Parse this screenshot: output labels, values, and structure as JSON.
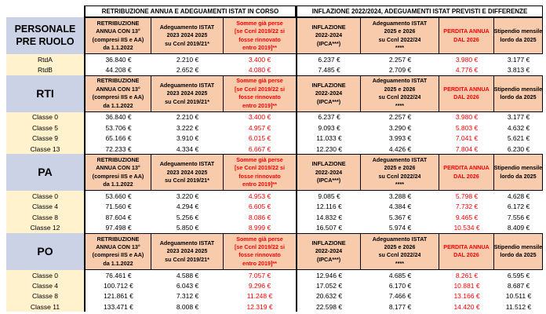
{
  "band": {
    "left_title": "RETRIBUZIONE ANNUA E ADEGUAMENTI ISTAT IN CORSO",
    "right_title": "INFLAZIONE 2022/2024, ADEGUAMENTI ISTAT PREVISTI E DIFFERENZE"
  },
  "column_headers": [
    {
      "lines": [
        "RETRIBUZIONE",
        "ANNUA CON 13°",
        "(compresi IIS e AA)",
        "da 1.1.2022"
      ],
      "color": "black"
    },
    {
      "lines": [
        "Adeguamento ISTAT",
        "2023 2024 2025",
        "su Ccnl 2019/21*"
      ],
      "color": "black"
    },
    {
      "lines": [
        "Somme già perse",
        "[se Ccnl 2019/22 si",
        "fosse rinnovato",
        "entro 2019]**"
      ],
      "color": "red"
    },
    {
      "lines": [
        "INFLAZIONE",
        "2022-2024",
        "(IPCA***)"
      ],
      "color": "black"
    },
    {
      "lines": [
        "Adeguamento ISTAT",
        "2025 e 2026",
        "su Ccnl 2022/24",
        "****"
      ],
      "color": "black"
    },
    {
      "lines": [
        "PERDITA ANNUA",
        "DAL 2026"
      ],
      "color": "red"
    },
    {
      "lines": [
        "Stipendio mensile",
        "lordo da 2025"
      ],
      "color": "black"
    }
  ],
  "red_value_columns": [
    2,
    5
  ],
  "colors": {
    "header_fill": "#f8cbad",
    "section_fill": "#ccd2e6",
    "label_fill": "#fff2cc",
    "alert_red": "#ff0000",
    "border": "#000000"
  },
  "sections": [
    {
      "name": "PERSONALE PRE RUOLO",
      "name_lines": [
        "PERSONALE",
        "PRE RUOLO"
      ],
      "rows": [
        {
          "label": "RtdA",
          "values": [
            "36.840 €",
            "2.210 €",
            "3.400 €",
            "6.237 €",
            "2.257 €",
            "3.980 €",
            "3.177 €"
          ]
        },
        {
          "label": "RtdB",
          "values": [
            "44.208 €",
            "2.652 €",
            "4.080 €",
            "7.485 €",
            "2.709 €",
            "4.776 €",
            "3.813 €"
          ]
        }
      ]
    },
    {
      "name": "RTI",
      "name_lines": [
        "RTI"
      ],
      "rows": [
        {
          "label": "Classe 0",
          "values": [
            "36.840 €",
            "2.210 €",
            "3.400 €",
            "6.237 €",
            "2.257 €",
            "3.980 €",
            "3.177 €"
          ]
        },
        {
          "label": "Classe 5",
          "values": [
            "53.706 €",
            "3.222 €",
            "4.957 €",
            "9.093 €",
            "3.290 €",
            "5.803 €",
            "4.632 €"
          ]
        },
        {
          "label": "Classe 9",
          "values": [
            "65.166 €",
            "3.910 €",
            "6.015 €",
            "11.033 €",
            "3.993 €",
            "7.041 €",
            "5.621 €"
          ]
        },
        {
          "label": "Classe 13",
          "values": [
            "72.233 €",
            "4.334 €",
            "6.667 €",
            "12.230 €",
            "4.426 €",
            "7.804 €",
            "6.230 €"
          ]
        }
      ]
    },
    {
      "name": "PA",
      "name_lines": [
        "PA"
      ],
      "rows": [
        {
          "label": "Classe 0",
          "values": [
            "53.660 €",
            "3.220 €",
            "4.953 €",
            "9.085 €",
            "3.288 €",
            "5.798 €",
            "4.628 €"
          ]
        },
        {
          "label": "Classe 4",
          "values": [
            "71.560 €",
            "4.294 €",
            "6.605 €",
            "12.116 €",
            "4.384 €",
            "7.732 €",
            "6.172 €"
          ]
        },
        {
          "label": "Classe 8",
          "values": [
            "87.604 €",
            "5.256 €",
            "8.086 €",
            "14.832 €",
            "5.367 €",
            "9.465 €",
            "7.556 €"
          ]
        },
        {
          "label": "Classe 12",
          "values": [
            "97.498 €",
            "5.850 €",
            "8.999 €",
            "16.507 €",
            "5.974 €",
            "10.534 €",
            "8.409 €"
          ]
        }
      ]
    },
    {
      "name": "PO",
      "name_lines": [
        "PO"
      ],
      "rows": [
        {
          "label": "Classe 0",
          "values": [
            "76.461 €",
            "4.588 €",
            "7.057 €",
            "12.946 €",
            "4.685 €",
            "8.261 €",
            "6.595 €"
          ]
        },
        {
          "label": "Classe 4",
          "values": [
            "100.712 €",
            "6.043 €",
            "9.296 €",
            "17.052 €",
            "6.170 €",
            "10.881 €",
            "8.687 €"
          ]
        },
        {
          "label": "Classe 8",
          "values": [
            "121.861 €",
            "7.312 €",
            "11.248 €",
            "20.632 €",
            "7.466 €",
            "13.166 €",
            "10.511 €"
          ]
        },
        {
          "label": "Classe 11",
          "values": [
            "133.471 €",
            "8.008 €",
            "12.319 €",
            "22.598 €",
            "8.177 €",
            "14.420 €",
            "11.512 €"
          ]
        }
      ]
    }
  ]
}
